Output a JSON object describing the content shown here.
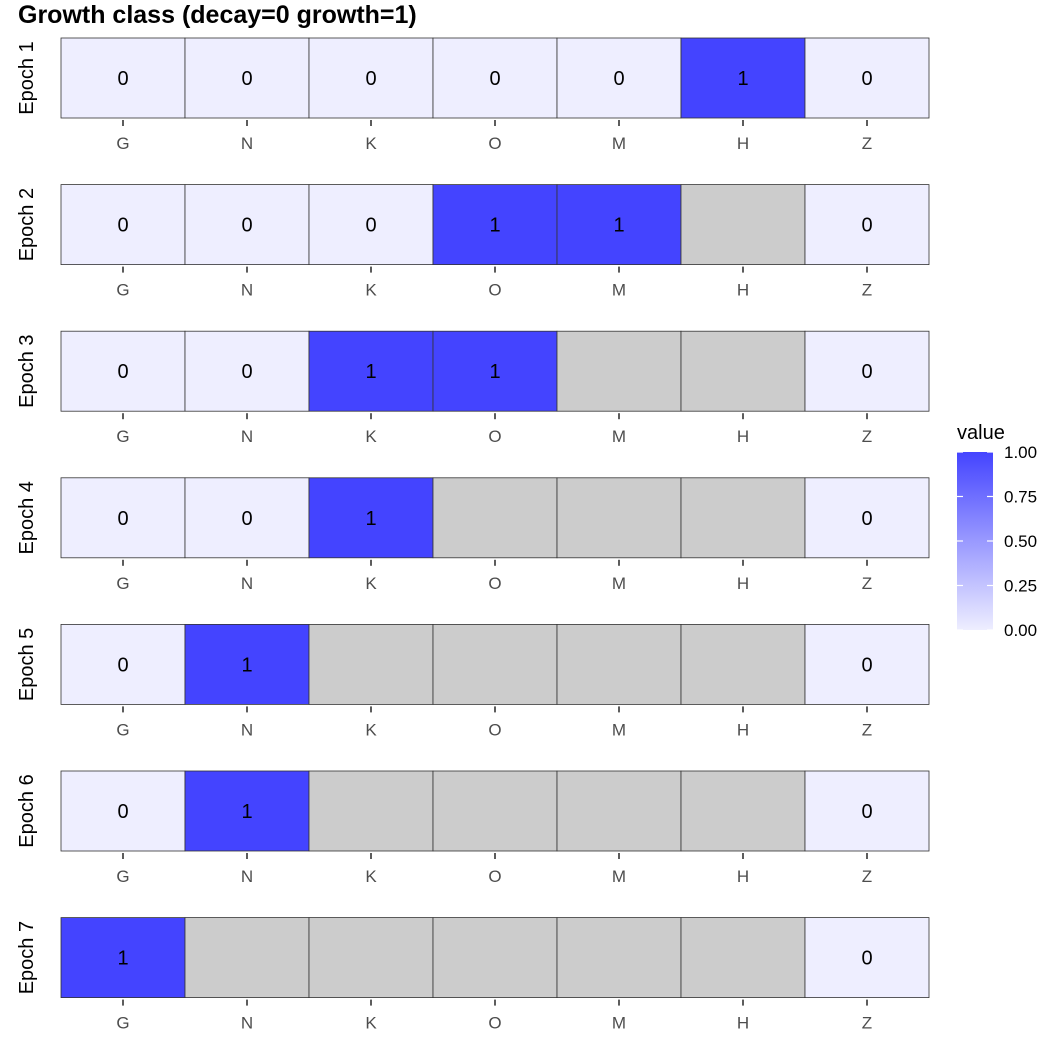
{
  "chart_data": {
    "type": "heatmap",
    "title": "Growth class (decay=0 growth=1)",
    "categories": [
      "G",
      "N",
      "K",
      "O",
      "M",
      "H",
      "Z"
    ],
    "rows": [
      {
        "label": "Epoch 1",
        "values": [
          0,
          0,
          0,
          0,
          0,
          1,
          0
        ]
      },
      {
        "label": "Epoch 2",
        "values": [
          0,
          0,
          0,
          1,
          1,
          null,
          0
        ]
      },
      {
        "label": "Epoch 3",
        "values": [
          0,
          0,
          1,
          1,
          null,
          null,
          0
        ]
      },
      {
        "label": "Epoch 4",
        "values": [
          0,
          0,
          1,
          null,
          null,
          null,
          0
        ]
      },
      {
        "label": "Epoch 5",
        "values": [
          0,
          1,
          null,
          null,
          null,
          null,
          0
        ]
      },
      {
        "label": "Epoch 6",
        "values": [
          0,
          1,
          null,
          null,
          null,
          null,
          0
        ]
      },
      {
        "label": "Epoch 7",
        "values": [
          1,
          null,
          null,
          null,
          null,
          null,
          0
        ]
      }
    ],
    "legend": {
      "title": "value",
      "ticks": [
        "1.00",
        "0.75",
        "0.50",
        "0.25",
        "0.00"
      ],
      "range": [
        0,
        1
      ],
      "position": "right"
    },
    "colors": {
      "low": "#eeeeff",
      "high": "#4444ff",
      "missing": "#cccccc"
    }
  }
}
